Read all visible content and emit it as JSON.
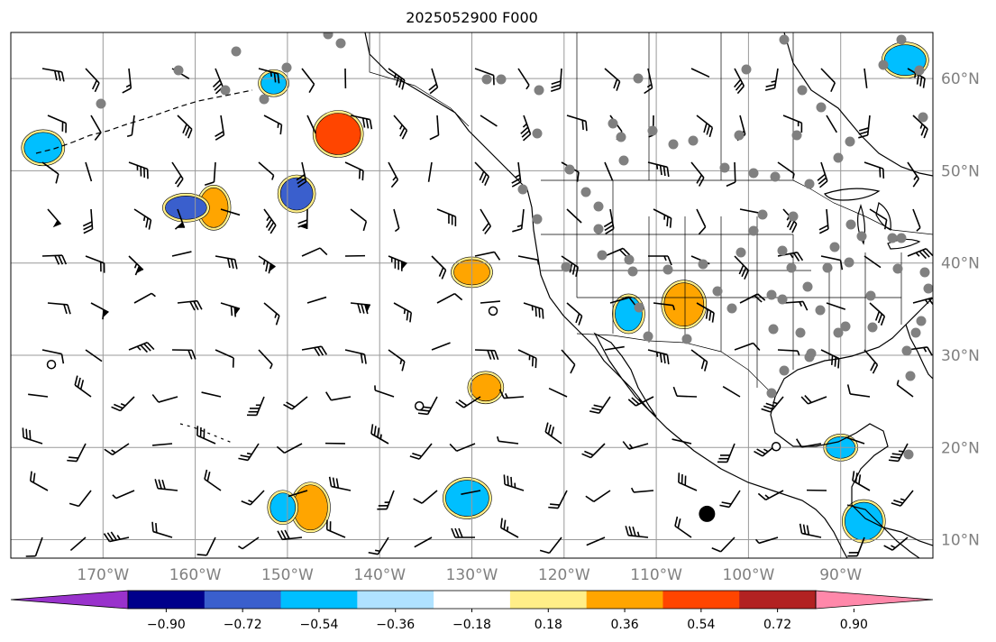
{
  "title": "2025052900 F000",
  "map": {
    "lon_range": [
      -180,
      -80
    ],
    "lat_range": [
      8,
      65
    ],
    "lon_ticks": [
      {
        "value": -170,
        "label": "170°W"
      },
      {
        "value": -160,
        "label": "160°W"
      },
      {
        "value": -150,
        "label": "150°W"
      },
      {
        "value": -140,
        "label": "140°W"
      },
      {
        "value": -130,
        "label": "130°W"
      },
      {
        "value": -120,
        "label": "120°W"
      },
      {
        "value": -110,
        "label": "110°W"
      },
      {
        "value": -100,
        "label": "100°W"
      },
      {
        "value": -90,
        "label": "90°W"
      }
    ],
    "lat_ticks": [
      {
        "value": 60,
        "label": "60°N"
      },
      {
        "value": 50,
        "label": "50°N"
      },
      {
        "value": 40,
        "label": "40°N"
      },
      {
        "value": 30,
        "label": "30°N"
      },
      {
        "value": 20,
        "label": "20°N"
      },
      {
        "value": 10,
        "label": "10°N"
      }
    ],
    "grid": true,
    "colors": {
      "coast": "#000000",
      "grid": "#999999",
      "tick_label": "#808080",
      "station": "#808080"
    }
  },
  "colorbar": {
    "orientation": "horizontal",
    "extend": "both",
    "boundaries": [
      -1.08,
      -0.9,
      -0.72,
      -0.54,
      -0.36,
      -0.18,
      0.18,
      0.36,
      0.54,
      0.72,
      0.9,
      1.08
    ],
    "colors": [
      "#9932cc",
      "#00008b",
      "#3a5fcd",
      "#00bfff",
      "#b0e2ff",
      "#ffffff",
      "#ffee88",
      "#ffa500",
      "#ff4500",
      "#b22222",
      "#ff88aa"
    ],
    "tick_labels": [
      "−0.90",
      "−0.72",
      "−0.54",
      "−0.36",
      "−0.18",
      "0.18",
      "0.36",
      "0.54",
      "0.72",
      "0.90"
    ]
  },
  "chart_data": {
    "type": "map",
    "title": "2025052900 F000",
    "shaded_regions": [
      {
        "lon": -151.5,
        "lat": 59.5,
        "value": -0.4
      },
      {
        "lon": -176.5,
        "lat": 52.5,
        "value": -0.4
      },
      {
        "lon": -158,
        "lat": 46,
        "value": 0.5
      },
      {
        "lon": -161,
        "lat": 46,
        "value": -0.6
      },
      {
        "lon": -149,
        "lat": 47.5,
        "value": -0.6
      },
      {
        "lon": -144.5,
        "lat": 54,
        "value": 0.6
      },
      {
        "lon": -130,
        "lat": 39,
        "value": 0.4
      },
      {
        "lon": -113,
        "lat": 34.5,
        "value": -0.4
      },
      {
        "lon": -107,
        "lat": 35.5,
        "value": 0.4
      },
      {
        "lon": -128.5,
        "lat": 26.5,
        "value": 0.4
      },
      {
        "lon": -130.5,
        "lat": 14.5,
        "value": -0.4
      },
      {
        "lon": -147.5,
        "lat": 13.5,
        "value": 0.4
      },
      {
        "lon": -150.5,
        "lat": 13.5,
        "value": -0.4
      },
      {
        "lon": -87.5,
        "lat": 12,
        "value": -0.4
      },
      {
        "lon": -90,
        "lat": 20,
        "value": -0.4
      },
      {
        "lon": -83,
        "lat": 62,
        "value": -0.4
      }
    ],
    "stations_lonlat": [],
    "special_markers": [
      {
        "lon": -104.5,
        "lat": 12.8,
        "kind": "large-black-dot"
      },
      {
        "lon": -127.7,
        "lat": 34.8,
        "kind": "open-circle"
      },
      {
        "lon": -175.6,
        "lat": 29.0,
        "kind": "open-circle"
      },
      {
        "lon": -135.7,
        "lat": 24.5,
        "kind": "open-circle"
      },
      {
        "lon": -97,
        "lat": 20.1,
        "kind": "open-circle"
      }
    ]
  }
}
